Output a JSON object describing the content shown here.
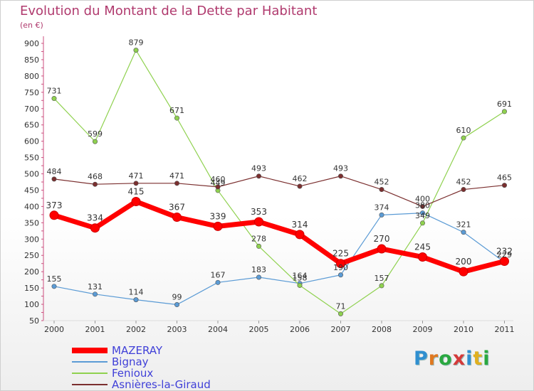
{
  "chart_data": {
    "type": "line",
    "title": "Evolution du Montant de la Dette par Habitant",
    "unit_label": "(en €)",
    "xlabel": "",
    "ylabel": "",
    "categories": [
      "2000",
      "2001",
      "2002",
      "2003",
      "2004",
      "2005",
      "2006",
      "2007",
      "2008",
      "2009",
      "2010",
      "2011"
    ],
    "ylim": [
      50,
      900
    ],
    "yticks": [
      50,
      100,
      150,
      200,
      250,
      300,
      350,
      400,
      450,
      500,
      550,
      600,
      650,
      700,
      750,
      800,
      850,
      900
    ],
    "grid": false,
    "legend_position": "bottom-left",
    "series": [
      {
        "name": "MAZERAY",
        "color": "#ff0000",
        "values": [
          373,
          334,
          415,
          367,
          339,
          353,
          314,
          225,
          270,
          245,
          200,
          232
        ]
      },
      {
        "name": "Bignay",
        "color": "#5b9bd5",
        "values": [
          155,
          131,
          114,
          99,
          167,
          183,
          164,
          190,
          374,
          380,
          321,
          229
        ]
      },
      {
        "name": "Fenioux",
        "color": "#8fd14f",
        "values": [
          731,
          599,
          879,
          671,
          449,
          278,
          158,
          71,
          157,
          349,
          610,
          691
        ]
      },
      {
        "name": "Asnières-la-Giraud",
        "color": "#7b2f2f",
        "values": [
          484,
          468,
          471,
          471,
          460,
          493,
          462,
          493,
          452,
          400,
          452,
          465
        ]
      }
    ]
  },
  "branding": {
    "logo_letters": [
      {
        "char": "P",
        "color": "#2f8fd0"
      },
      {
        "char": "r",
        "color": "#e07820"
      },
      {
        "char": "o",
        "color": "#2aa840"
      },
      {
        "char": "x",
        "color": "#d43a3a"
      },
      {
        "char": "i",
        "color": "#2f8fd0"
      },
      {
        "char": "t",
        "color": "#e0b020"
      },
      {
        "char": "i",
        "color": "#2aa840"
      }
    ]
  }
}
